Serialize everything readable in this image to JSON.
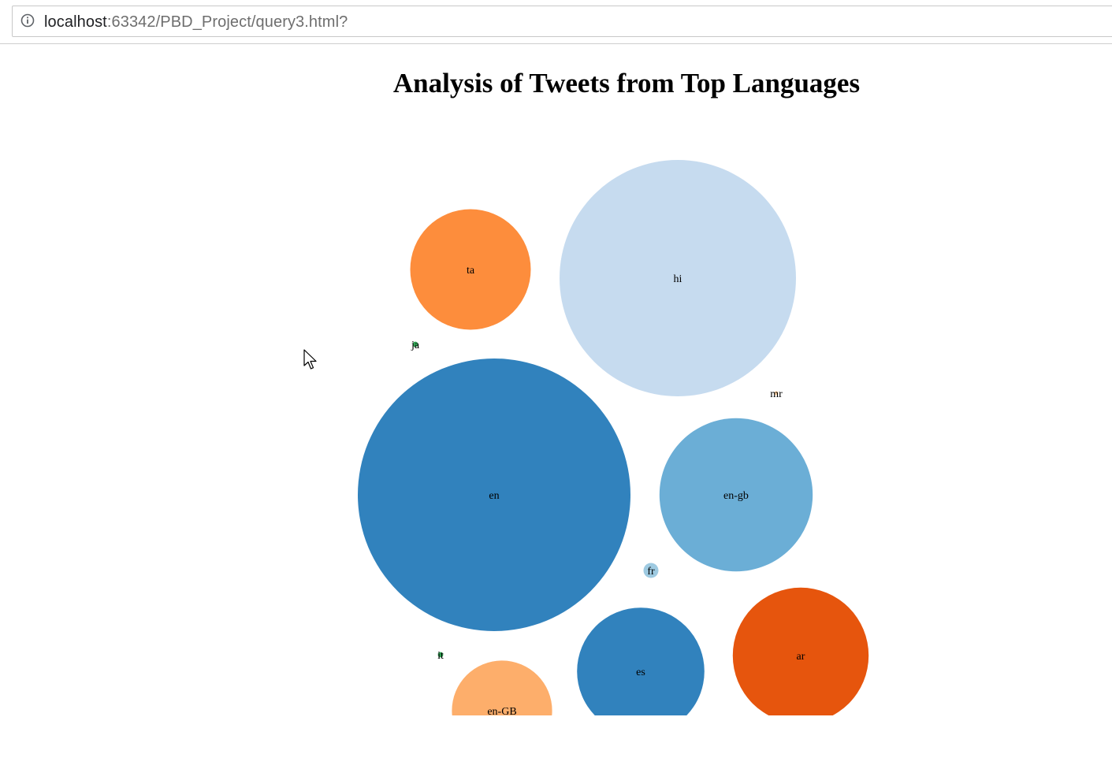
{
  "browser": {
    "url_host": "localhost",
    "url_rest": ":63342/PBD_Project/query3.html?"
  },
  "page": {
    "title": "Analysis of Tweets from Top Languages"
  },
  "chart_data": {
    "type": "bubble",
    "title": "Analysis of Tweets from Top Languages",
    "series": [
      {
        "name": "hi",
        "value": 1.0,
        "color": "#c6dbef"
      },
      {
        "name": "en",
        "value": 1.33,
        "color": "#3182bd"
      },
      {
        "name": "ta",
        "value": 0.26,
        "color": "#fd8d3c"
      },
      {
        "name": "en-gb",
        "value": 0.42,
        "color": "#6baed6"
      },
      {
        "name": "ar",
        "value": 0.33,
        "color": "#e6550d"
      },
      {
        "name": "es",
        "value": 0.29,
        "color": "#3182bd"
      },
      {
        "name": "en-GB",
        "value": 0.18,
        "color": "#fdae6b"
      },
      {
        "name": "fr",
        "value": 0.004,
        "color": "#9ecae1"
      },
      {
        "name": "ja",
        "value": 0.0005,
        "color": "#31a354"
      },
      {
        "name": "mr",
        "value": 0.0003,
        "color": "#fdd0a2"
      },
      {
        "name": "it",
        "value": 0.0005,
        "color": "#31a354"
      }
    ]
  }
}
